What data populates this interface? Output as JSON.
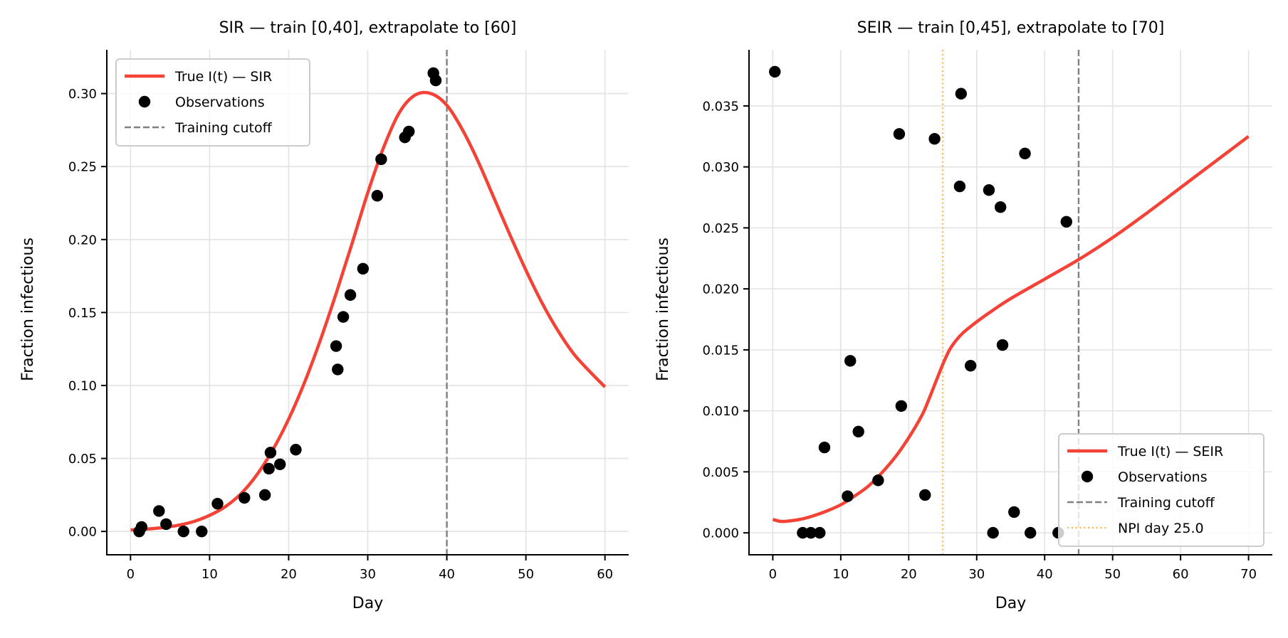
{
  "chart_data": [
    {
      "type": "line",
      "title": "SIR — train [0,40], extrapolate to [60]",
      "xlabel": "Day",
      "ylabel": "Fraction infectious",
      "xlim": [
        -3,
        63
      ],
      "ylim": [
        -0.016,
        0.33
      ],
      "xticks": [
        0,
        10,
        20,
        30,
        40,
        50,
        60
      ],
      "xtick_labels": [
        "0",
        "10",
        "20",
        "30",
        "40",
        "50",
        "60"
      ],
      "yticks": [
        0.0,
        0.05,
        0.1,
        0.15,
        0.2,
        0.25,
        0.3
      ],
      "ytick_labels": [
        "0.00",
        "0.05",
        "0.10",
        "0.15",
        "0.20",
        "0.25",
        "0.30"
      ],
      "grid": true,
      "legend_position": "top-left",
      "colors": {
        "true_curve": "#f44336",
        "observations": "#000000",
        "cutoff": "#808080"
      },
      "series": [
        {
          "name": "True I(t) — SIR",
          "kind": "line",
          "x": [
            0,
            2,
            4,
            6,
            8,
            10,
            12,
            14,
            16,
            18,
            20,
            22,
            24,
            26,
            28,
            30,
            32,
            34,
            36,
            38,
            40,
            42,
            44,
            46,
            48,
            50,
            52,
            54,
            56,
            58,
            60
          ],
          "y": [
            0.001,
            0.0016,
            0.0026,
            0.0042,
            0.0068,
            0.011,
            0.017,
            0.026,
            0.039,
            0.056,
            0.077,
            0.102,
            0.131,
            0.163,
            0.197,
            0.232,
            0.263,
            0.287,
            0.299,
            0.3,
            0.292,
            0.275,
            0.253,
            0.228,
            0.203,
            0.179,
            0.157,
            0.138,
            0.122,
            0.11,
            0.099
          ]
        },
        {
          "name": "Observations",
          "kind": "scatter",
          "x": [
            1.1,
            1.4,
            3.6,
            4.5,
            6.7,
            9.0,
            11.0,
            14.4,
            17.0,
            17.5,
            17.7,
            18.9,
            20.9,
            26.0,
            26.2,
            26.9,
            27.8,
            29.4,
            31.2,
            31.7,
            34.7,
            35.2,
            38.3,
            38.6
          ],
          "y": [
            0.0,
            0.003,
            0.014,
            0.005,
            0.0,
            0.0,
            0.019,
            0.023,
            0.025,
            0.043,
            0.054,
            0.046,
            0.056,
            0.127,
            0.111,
            0.147,
            0.162,
            0.18,
            0.23,
            0.255,
            0.27,
            0.274,
            0.314,
            0.309
          ]
        },
        {
          "name": "Training cutoff",
          "kind": "vline",
          "x": 40
        }
      ]
    },
    {
      "type": "line",
      "title": "SEIR — train [0,45], extrapolate to [70]",
      "xlabel": "Day",
      "ylabel": "Fraction infectious",
      "xlim": [
        -3.5,
        73.5
      ],
      "ylim": [
        -0.0018,
        0.0396
      ],
      "xticks": [
        0,
        10,
        20,
        30,
        40,
        50,
        60,
        70
      ],
      "xtick_labels": [
        "0",
        "10",
        "20",
        "30",
        "40",
        "50",
        "60",
        "70"
      ],
      "yticks": [
        0.0,
        0.005,
        0.01,
        0.015,
        0.02,
        0.025,
        0.03,
        0.035
      ],
      "ytick_labels": [
        "0.000",
        "0.005",
        "0.010",
        "0.015",
        "0.020",
        "0.025",
        "0.030",
        "0.035"
      ],
      "grid": true,
      "legend_position": "bottom-right",
      "colors": {
        "true_curve": "#f44336",
        "observations": "#000000",
        "cutoff": "#808080",
        "npi": "#ffb74d"
      },
      "series": [
        {
          "name": "True I(t) — SEIR",
          "kind": "line",
          "x": [
            0,
            1,
            2,
            4,
            6,
            8,
            10,
            12,
            14,
            16,
            18,
            20,
            22,
            23,
            24,
            25,
            26,
            27,
            28,
            30,
            32,
            35,
            40,
            45,
            50,
            55,
            60,
            65,
            70
          ],
          "y": [
            0.0011,
            0.00095,
            0.00095,
            0.0011,
            0.0014,
            0.0018,
            0.0023,
            0.003,
            0.0038,
            0.0049,
            0.0062,
            0.0078,
            0.0097,
            0.011,
            0.0124,
            0.0138,
            0.015,
            0.0158,
            0.0164,
            0.0173,
            0.0181,
            0.0192,
            0.0208,
            0.0224,
            0.0242,
            0.0262,
            0.0283,
            0.0304,
            0.0325
          ]
        },
        {
          "name": "Observations",
          "kind": "scatter",
          "x": [
            0.3,
            4.4,
            5.6,
            6.9,
            7.6,
            11.0,
            11.4,
            12.6,
            15.5,
            18.6,
            18.9,
            22.4,
            23.8,
            27.5,
            27.7,
            29.1,
            31.8,
            32.4,
            33.5,
            33.8,
            35.5,
            37.1,
            37.9,
            42.0,
            43.2
          ],
          "y": [
            0.0378,
            0.0,
            0.0,
            0.0,
            0.007,
            0.003,
            0.0141,
            0.0083,
            0.0043,
            0.0327,
            0.0104,
            0.0031,
            0.0323,
            0.0284,
            0.036,
            0.0137,
            0.0281,
            0.0,
            0.0267,
            0.0154,
            0.0017,
            0.0311,
            0.0,
            0.0,
            0.0255
          ]
        },
        {
          "name": "Training cutoff",
          "kind": "vline",
          "x": 45
        },
        {
          "name": "NPI day 25.0",
          "kind": "vline",
          "x": 25
        }
      ]
    }
  ]
}
